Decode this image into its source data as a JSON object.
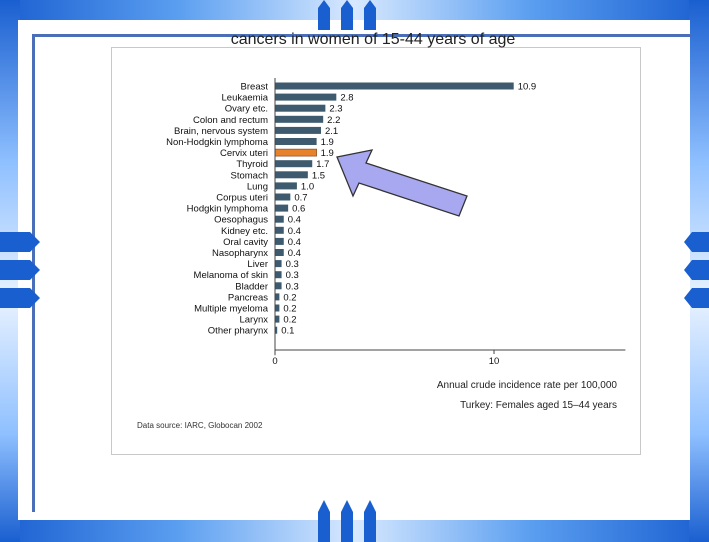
{
  "slide": {
    "accent_color": "#1a5fd0",
    "arrow_color": "#a8a8f0"
  },
  "chart_data": {
    "type": "bar",
    "orientation": "horizontal",
    "title": "cancers in women of 15-44 years of age",
    "categories": [
      "Breast",
      "Leukaemia",
      "Ovary etc.",
      "Colon and rectum",
      "Brain, nervous system",
      "Non-Hodgkin lymphoma",
      "Cervix uteri",
      "Thyroid",
      "Stomach",
      "Lung",
      "Corpus uteri",
      "Hodgkin lymphoma",
      "Oesophagus",
      "Kidney etc.",
      "Oral cavity",
      "Nasopharynx",
      "Liver",
      "Melanoma of skin",
      "Bladder",
      "Pancreas",
      "Multiple myeloma",
      "Larynx",
      "Other pharynx"
    ],
    "values": [
      10.9,
      2.8,
      2.3,
      2.2,
      2.1,
      1.9,
      1.9,
      1.7,
      1.5,
      1.0,
      0.7,
      0.6,
      0.4,
      0.4,
      0.4,
      0.4,
      0.3,
      0.3,
      0.3,
      0.2,
      0.2,
      0.2,
      0.1
    ],
    "value_labels": [
      "10.9",
      "2.8",
      "2.3",
      "2.2",
      "2.1",
      "1.9",
      "1.9",
      "1.7",
      "1.5",
      "1.0",
      "0.7",
      "0.6",
      "0.4",
      "0.4",
      "0.4",
      "0.4",
      "0.3",
      "0.3",
      "0.3",
      "0.2",
      "0.2",
      "0.2",
      "0.1"
    ],
    "highlight_index": 6,
    "bar_color": "#3d5a6e",
    "highlight_color": "#e8822a",
    "xlim": [
      0,
      16
    ],
    "xticks": [
      0,
      10
    ],
    "tick_labels": [
      "0",
      "10"
    ],
    "xlabel": "Annual crude incidence rate per 100,000",
    "subtitle": "Turkey: Females aged 15–44 years",
    "source": "Data source: IARC, Globocan 2002",
    "grid": false
  }
}
